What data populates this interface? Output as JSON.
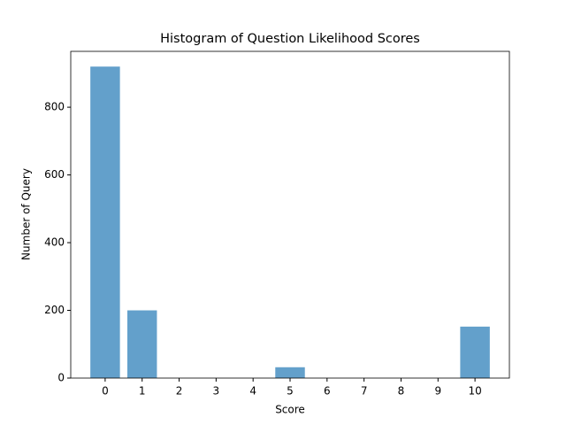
{
  "chart_data": {
    "type": "bar",
    "title": "Histogram of Question Likelihood Scores",
    "x_label": "Score",
    "y_label": "Number of Query",
    "x": [
      0,
      1,
      2,
      3,
      4,
      5,
      6,
      7,
      8,
      9,
      10
    ],
    "values": [
      920,
      200,
      0,
      0,
      0,
      32,
      0,
      0,
      0,
      0,
      152
    ],
    "bar_width": 0.8,
    "color": "#63a0cb",
    "xlim": [
      -0.93,
      10.93
    ],
    "xticks": [
      0,
      1,
      2,
      3,
      4,
      5,
      6,
      7,
      8,
      9,
      10
    ],
    "ylim": [
      0,
      965
    ],
    "yticks": [
      0,
      200,
      400,
      600,
      800
    ],
    "grid": false
  }
}
